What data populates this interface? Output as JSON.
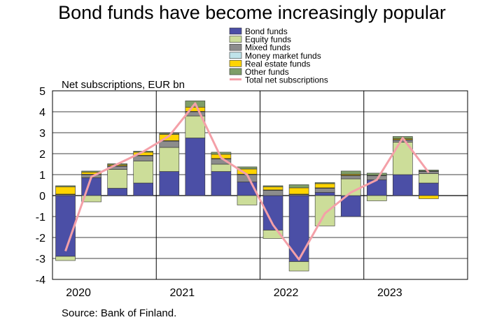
{
  "title": "Bond funds have become increasingly popular",
  "source": "Source: Bank of Finland.",
  "chart_data": {
    "type": "bar",
    "stacked": true,
    "ylabel": "Net subscriptions, EUR bn",
    "ylim": [
      -4,
      5
    ],
    "yticks": [
      -4,
      -3,
      -2,
      -1,
      0,
      1,
      2,
      3,
      4,
      5
    ],
    "grid": true,
    "legend_position": "top-center",
    "year_labels": [
      "2020",
      "2021",
      "2022",
      "2023"
    ],
    "categories": [
      "2020 Q1",
      "2020 Q2",
      "2020 Q3",
      "2020 Q4",
      "2021 Q1",
      "2021 Q2",
      "2021 Q3",
      "2021 Q4",
      "2022 Q1",
      "2022 Q2",
      "2022 Q3",
      "2022 Q4",
      "2023 Q1",
      "2023 Q2",
      "2023 Q3"
    ],
    "series": [
      {
        "name": "Bond funds",
        "color": "#4b4fa6",
        "values": [
          -2.9,
          0.85,
          0.35,
          0.6,
          1.15,
          2.75,
          1.15,
          0.65,
          -1.65,
          -3.15,
          0.15,
          -1.0,
          0.75,
          1.0,
          0.6
        ]
      },
      {
        "name": "Equity funds",
        "color": "#ccdd99",
        "values": [
          -0.2,
          -0.3,
          0.9,
          1.05,
          1.15,
          1.05,
          0.35,
          -0.45,
          -0.4,
          -0.45,
          -1.45,
          0.8,
          -0.25,
          1.55,
          0.45
        ]
      },
      {
        "name": "Mixed funds",
        "color": "#8c8c8c",
        "values": [
          0.05,
          0.15,
          0.15,
          0.25,
          0.3,
          0.2,
          0.25,
          0.35,
          0.25,
          0.05,
          0.2,
          0.15,
          0.2,
          0.1,
          0.1
        ]
      },
      {
        "name": "Money market funds",
        "color": "#bfe3ea",
        "values": [
          0.02,
          0.02,
          0.02,
          0.02,
          0.02,
          0.02,
          0.02,
          0.02,
          0.02,
          0.02,
          0.02,
          0.02,
          0.02,
          0.02,
          0.02
        ]
      },
      {
        "name": "Real estate funds",
        "color": "#ffd400",
        "values": [
          0.35,
          0.1,
          0.05,
          0.15,
          0.3,
          0.2,
          0.2,
          0.25,
          0.15,
          0.3,
          0.2,
          0.05,
          0.0,
          0.05,
          -0.15
        ]
      },
      {
        "name": "Other funds",
        "color": "#7f9e68",
        "values": [
          0.05,
          0.05,
          0.05,
          0.05,
          0.05,
          0.3,
          0.1,
          0.1,
          0.05,
          0.15,
          0.05,
          0.15,
          0.1,
          0.1,
          0.05
        ]
      }
    ],
    "line": {
      "name": "Total net subscriptions",
      "color": "#f4a0a8",
      "values": [
        -2.65,
        0.9,
        1.5,
        2.1,
        2.85,
        4.4,
        1.8,
        1.0,
        -1.4,
        -3.05,
        -0.85,
        0.15,
        0.75,
        2.75,
        1.1
      ]
    }
  }
}
